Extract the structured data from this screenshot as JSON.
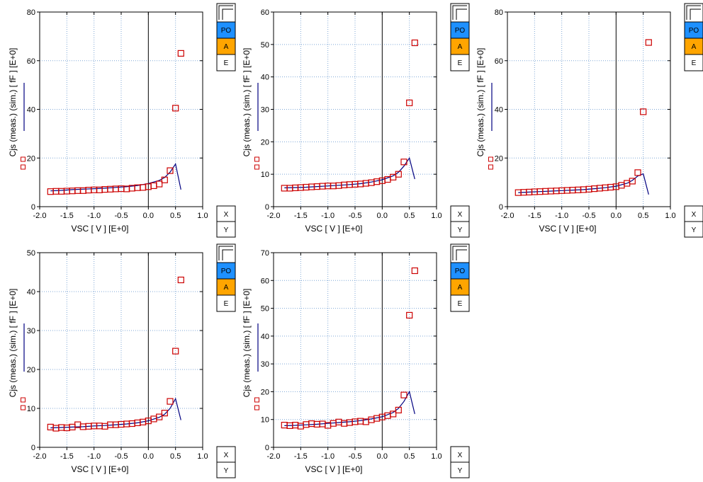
{
  "colors": {
    "grid": "#7fa7d6",
    "sim_line": "#000080",
    "meas_marker": "#cc0000",
    "po_button": "#1e90ff",
    "a_button": "#ffa500",
    "frame": "#000000"
  },
  "controls": {
    "po_label": "PO",
    "a_label": "A",
    "e_label": "E",
    "x_label": "X",
    "y_label": "Y"
  },
  "chart_data": [
    {
      "type": "line",
      "xlabel": "VSC [ V ]  [E+0]",
      "ylabel": "Cjs (meas.)  (sim.) [ fF ]  [E+0]",
      "xlim": [
        -2.0,
        1.0
      ],
      "ylim": [
        0,
        80
      ],
      "x_ticks": [
        -2.0,
        -1.5,
        -1.0,
        -0.5,
        0.0,
        0.5,
        1.0
      ],
      "x_tick_labels": [
        "-2.0",
        "-1.5",
        "-1.0",
        "-0.5",
        "0.0",
        "0.5",
        "1.0"
      ],
      "y_ticks": [
        0,
        20,
        40,
        60,
        80
      ],
      "y_tick_labels": [
        "0",
        "20",
        "40",
        "60",
        "80"
      ],
      "grid": true,
      "series": [
        {
          "role": "simulated",
          "x": [
            -1.8,
            -1.6,
            -1.4,
            -1.2,
            -1.0,
            -0.8,
            -0.6,
            -0.4,
            -0.2,
            0.0,
            0.2,
            0.3,
            0.4,
            0.5,
            0.6
          ],
          "y": [
            6.5,
            6.7,
            7.0,
            7.2,
            7.4,
            7.6,
            7.9,
            8.2,
            8.7,
            9.5,
            10.8,
            12.0,
            14.2,
            17.5,
            7.0
          ]
        },
        {
          "role": "measured",
          "x": [
            -1.8,
            -1.7,
            -1.6,
            -1.5,
            -1.4,
            -1.3,
            -1.2,
            -1.1,
            -1.0,
            -0.9,
            -0.8,
            -0.7,
            -0.6,
            -0.5,
            -0.4,
            -0.3,
            -0.2,
            -0.1,
            0.0,
            0.1,
            0.2,
            0.3,
            0.4,
            0.5,
            0.6
          ],
          "y": [
            6.2,
            6.3,
            6.3,
            6.4,
            6.5,
            6.6,
            6.6,
            6.8,
            6.9,
            6.9,
            7.1,
            7.2,
            7.3,
            7.4,
            7.3,
            7.6,
            7.8,
            7.9,
            8.2,
            8.6,
            9.3,
            11.0,
            14.8,
            40.5,
            63.0
          ]
        }
      ]
    },
    {
      "type": "line",
      "xlabel": "VSC [ V ]  [E+0]",
      "ylabel": "Cjs (meas.)  (sim.) [ fF ]  [E+0]",
      "xlim": [
        -2.0,
        1.0
      ],
      "ylim": [
        0,
        60
      ],
      "x_ticks": [
        -2.0,
        -1.5,
        -1.0,
        -0.5,
        0.0,
        0.5,
        1.0
      ],
      "x_tick_labels": [
        "-2.0",
        "-1.5",
        "-1.0",
        "-0.5",
        "0.0",
        "0.5",
        "1.0"
      ],
      "y_ticks": [
        0,
        10,
        20,
        30,
        40,
        50,
        60
      ],
      "y_tick_labels": [
        "0",
        "10",
        "20",
        "30",
        "40",
        "50",
        "60"
      ],
      "grid": true,
      "series": [
        {
          "role": "simulated",
          "x": [
            -1.8,
            -1.6,
            -1.4,
            -1.2,
            -1.0,
            -0.8,
            -0.6,
            -0.4,
            -0.2,
            0.0,
            0.2,
            0.3,
            0.4,
            0.5,
            0.6
          ],
          "y": [
            5.8,
            5.9,
            6.0,
            6.2,
            6.4,
            6.6,
            6.8,
            7.1,
            7.6,
            8.3,
            9.5,
            10.6,
            12.5,
            15.0,
            8.5
          ]
        },
        {
          "role": "measured",
          "x": [
            -1.8,
            -1.7,
            -1.6,
            -1.5,
            -1.4,
            -1.3,
            -1.2,
            -1.1,
            -1.0,
            -0.9,
            -0.8,
            -0.7,
            -0.6,
            -0.5,
            -0.4,
            -0.3,
            -0.2,
            -0.1,
            0.0,
            0.1,
            0.2,
            0.3,
            0.4,
            0.5,
            0.6
          ],
          "y": [
            5.7,
            5.7,
            5.8,
            5.9,
            6.0,
            6.1,
            6.2,
            6.3,
            6.4,
            6.4,
            6.5,
            6.7,
            6.8,
            6.9,
            7.0,
            7.2,
            7.4,
            7.7,
            8.0,
            8.4,
            9.1,
            10.0,
            13.8,
            32.0,
            50.5
          ]
        }
      ]
    },
    {
      "type": "line",
      "xlabel": "VSC [ V ]  [E+0]",
      "ylabel": "Cjs (meas.)  (sim.) [ fF ]  [E+0]",
      "xlim": [
        -2.0,
        1.0
      ],
      "ylim": [
        0,
        80
      ],
      "x_ticks": [
        -2.0,
        -1.5,
        -1.0,
        -0.5,
        0.0,
        0.5,
        1.0
      ],
      "x_tick_labels": [
        "-2.0",
        "-1.5",
        "-1.0",
        "-0.5",
        "0.0",
        "0.5",
        "1.0"
      ],
      "y_ticks": [
        0,
        20,
        40,
        60,
        80
      ],
      "y_tick_labels": [
        "0",
        "20",
        "40",
        "60",
        "80"
      ],
      "grid": true,
      "series": [
        {
          "role": "simulated",
          "x": [
            -1.8,
            -1.6,
            -1.4,
            -1.2,
            -1.0,
            -0.8,
            -0.6,
            -0.4,
            -0.2,
            0.0,
            0.2,
            0.3,
            0.4,
            0.5,
            0.6
          ],
          "y": [
            5.8,
            6.0,
            6.2,
            6.4,
            6.6,
            6.8,
            7.0,
            7.4,
            7.8,
            8.4,
            9.6,
            10.8,
            12.6,
            13.5,
            5.0
          ]
        },
        {
          "role": "measured",
          "x": [
            -1.8,
            -1.7,
            -1.6,
            -1.5,
            -1.4,
            -1.3,
            -1.2,
            -1.1,
            -1.0,
            -0.9,
            -0.8,
            -0.7,
            -0.6,
            -0.5,
            -0.4,
            -0.3,
            -0.2,
            -0.1,
            0.0,
            0.1,
            0.2,
            0.3,
            0.4,
            0.5,
            0.6
          ],
          "y": [
            5.8,
            5.9,
            6.0,
            6.1,
            6.2,
            6.3,
            6.4,
            6.5,
            6.6,
            6.7,
            6.8,
            6.9,
            7.0,
            7.2,
            7.4,
            7.6,
            7.8,
            8.0,
            8.2,
            8.8,
            9.6,
            10.5,
            14.0,
            39.0,
            67.5
          ]
        }
      ]
    },
    {
      "type": "line",
      "xlabel": "VSC [ V ]  [E+0]",
      "ylabel": "Cjs (meas.)  (sim.) [ fF ]  [E+0]",
      "xlim": [
        -2.0,
        1.0
      ],
      "ylim": [
        0,
        50
      ],
      "x_ticks": [
        -2.0,
        -1.5,
        -1.0,
        -0.5,
        0.0,
        0.5,
        1.0
      ],
      "x_tick_labels": [
        "-2.0",
        "-1.5",
        "-1.0",
        "-0.5",
        "0.0",
        "0.5",
        "1.0"
      ],
      "y_ticks": [
        0,
        10,
        20,
        30,
        40,
        50
      ],
      "y_tick_labels": [
        "0",
        "10",
        "20",
        "30",
        "40",
        "50"
      ],
      "grid": true,
      "series": [
        {
          "role": "simulated",
          "x": [
            -1.8,
            -1.6,
            -1.4,
            -1.2,
            -1.0,
            -0.8,
            -0.6,
            -0.4,
            -0.2,
            0.0,
            0.2,
            0.3,
            0.4,
            0.5,
            0.6
          ],
          "y": [
            5.0,
            5.1,
            5.2,
            5.3,
            5.5,
            5.6,
            5.8,
            6.0,
            6.3,
            6.8,
            7.7,
            8.5,
            10.0,
            12.5,
            7.0
          ]
        },
        {
          "role": "measured",
          "x": [
            -1.8,
            -1.7,
            -1.6,
            -1.5,
            -1.4,
            -1.3,
            -1.2,
            -1.1,
            -1.0,
            -0.9,
            -0.8,
            -0.7,
            -0.6,
            -0.5,
            -0.4,
            -0.3,
            -0.2,
            -0.1,
            0.0,
            0.1,
            0.2,
            0.3,
            0.4,
            0.5,
            0.6
          ],
          "y": [
            5.2,
            4.9,
            5.1,
            5.0,
            5.2,
            5.8,
            5.3,
            5.4,
            5.5,
            5.5,
            5.4,
            5.8,
            5.8,
            5.9,
            6.0,
            6.1,
            6.3,
            6.5,
            6.8,
            7.3,
            7.8,
            8.8,
            11.8,
            24.7,
            43.0
          ]
        }
      ]
    },
    {
      "type": "line",
      "xlabel": "VSC [ V ]  [E+0]",
      "ylabel": "Cjs (meas.)  (sim.) [ fF ]  [E+0]",
      "xlim": [
        -2.0,
        1.0
      ],
      "ylim": [
        0,
        70
      ],
      "x_ticks": [
        -2.0,
        -1.5,
        -1.0,
        -0.5,
        0.0,
        0.5,
        1.0
      ],
      "x_tick_labels": [
        "-2.0",
        "-1.5",
        "-1.0",
        "-0.5",
        "0.0",
        "0.5",
        "1.0"
      ],
      "y_ticks": [
        0,
        10,
        20,
        30,
        40,
        50,
        60,
        70
      ],
      "y_tick_labels": [
        "0",
        "10",
        "20",
        "30",
        "40",
        "50",
        "60",
        "70"
      ],
      "grid": true,
      "series": [
        {
          "role": "simulated",
          "x": [
            -1.8,
            -1.6,
            -1.4,
            -1.2,
            -1.0,
            -0.8,
            -0.6,
            -0.4,
            -0.2,
            0.0,
            0.2,
            0.3,
            0.4,
            0.5,
            0.6
          ],
          "y": [
            7.8,
            7.9,
            8.1,
            8.3,
            8.6,
            8.9,
            9.2,
            9.6,
            10.2,
            11.0,
            12.5,
            14.0,
            16.5,
            20.0,
            12.0
          ]
        },
        {
          "role": "measured",
          "x": [
            -1.8,
            -1.7,
            -1.6,
            -1.5,
            -1.4,
            -1.3,
            -1.2,
            -1.1,
            -1.0,
            -0.9,
            -0.8,
            -0.7,
            -0.6,
            -0.5,
            -0.4,
            -0.3,
            -0.2,
            -0.1,
            0.0,
            0.1,
            0.2,
            0.3,
            0.4,
            0.5,
            0.6
          ],
          "y": [
            8.0,
            7.8,
            8.0,
            7.6,
            8.2,
            8.5,
            8.3,
            8.4,
            7.9,
            8.6,
            9.1,
            8.6,
            8.9,
            9.2,
            9.4,
            9.2,
            9.9,
            10.4,
            10.9,
            11.4,
            12.0,
            13.4,
            18.8,
            47.5,
            63.5
          ]
        }
      ]
    }
  ]
}
